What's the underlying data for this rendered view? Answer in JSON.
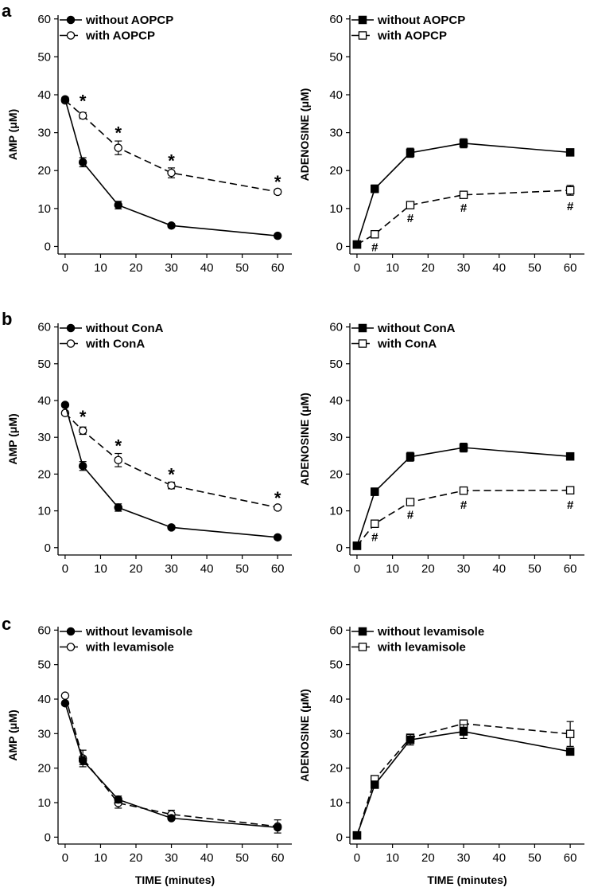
{
  "panel_labels": [
    "a",
    "b",
    "c"
  ],
  "chart_data": [
    {
      "type": "line",
      "panel": "a",
      "column": "left",
      "xlabel": "",
      "ylabel": "AMP (μM)",
      "xlim": [
        -2,
        64
      ],
      "ylim": [
        -2,
        61
      ],
      "xticks": [
        0,
        10,
        20,
        30,
        40,
        50,
        60
      ],
      "yticks": [
        0,
        10,
        20,
        30,
        40,
        50,
        60
      ],
      "legend_position": "top-left",
      "series": [
        {
          "name": "without AOPCP",
          "marker": "filled-circle",
          "dashed": false,
          "x": [
            0,
            5,
            15,
            30,
            60
          ],
          "y": [
            38.8,
            22.2,
            10.9,
            5.5,
            2.8
          ],
          "err": [
            0.5,
            1.2,
            1.0,
            0.5,
            0.4
          ]
        },
        {
          "name": "with AOPCP",
          "marker": "open-circle",
          "dashed": true,
          "x": [
            0,
            5,
            15,
            30,
            60
          ],
          "y": [
            38.5,
            34.5,
            26.0,
            19.4,
            14.4
          ],
          "err": [
            0.5,
            0.8,
            1.8,
            1.3,
            0.6
          ]
        }
      ],
      "annotations": [
        {
          "text": "*",
          "x": 5,
          "y": 38.4
        },
        {
          "text": "*",
          "x": 15,
          "y": 30.0
        },
        {
          "text": "*",
          "x": 30,
          "y": 22.7
        },
        {
          "text": "*",
          "x": 60,
          "y": 17.1
        }
      ]
    },
    {
      "type": "line",
      "panel": "a",
      "column": "right",
      "xlabel": "",
      "ylabel": "ADENOSINE (μM)",
      "xlim": [
        -2,
        64
      ],
      "ylim": [
        -2,
        61
      ],
      "xticks": [
        0,
        10,
        20,
        30,
        40,
        50,
        60
      ],
      "yticks": [
        0,
        10,
        20,
        30,
        40,
        50,
        60
      ],
      "legend_position": "top-left",
      "series": [
        {
          "name": "without AOPCP",
          "marker": "filled-square",
          "dashed": false,
          "x": [
            0,
            5,
            15,
            30,
            60
          ],
          "y": [
            0.5,
            15.2,
            24.7,
            27.2,
            24.8
          ],
          "err": [
            0.3,
            1.0,
            1.2,
            1.2,
            0.8
          ]
        },
        {
          "name": "with AOPCP",
          "marker": "open-square",
          "dashed": true,
          "x": [
            0,
            5,
            15,
            30,
            60
          ],
          "y": [
            0.5,
            3.2,
            10.9,
            13.6,
            14.8
          ],
          "err": [
            0.3,
            0.5,
            0.7,
            0.6,
            1.3
          ]
        }
      ],
      "annotations": [
        {
          "text": "#",
          "x": 5,
          "y": -1.3
        },
        {
          "text": "#",
          "x": 15,
          "y": 6.4
        },
        {
          "text": "#",
          "x": 30,
          "y": 9.1
        },
        {
          "text": "#",
          "x": 60,
          "y": 9.5
        }
      ]
    },
    {
      "type": "line",
      "panel": "b",
      "column": "left",
      "xlabel": "",
      "ylabel": "AMP (μM)",
      "xlim": [
        -2,
        64
      ],
      "ylim": [
        -2,
        61
      ],
      "xticks": [
        0,
        10,
        20,
        30,
        40,
        50,
        60
      ],
      "yticks": [
        0,
        10,
        20,
        30,
        40,
        50,
        60
      ],
      "legend_position": "top-left",
      "series": [
        {
          "name": "without ConA",
          "marker": "filled-circle",
          "dashed": false,
          "x": [
            0,
            5,
            15,
            30,
            60
          ],
          "y": [
            38.8,
            22.2,
            10.9,
            5.5,
            2.8
          ],
          "err": [
            0.5,
            1.2,
            1.0,
            0.5,
            0.4
          ]
        },
        {
          "name": "with ConA",
          "marker": "open-circle",
          "dashed": true,
          "x": [
            0,
            5,
            15,
            30,
            60
          ],
          "y": [
            36.6,
            31.8,
            23.8,
            16.9,
            10.9
          ],
          "err": [
            0.5,
            1.0,
            1.8,
            0.9,
            0.5
          ]
        }
      ],
      "annotations": [
        {
          "text": "*",
          "x": 5,
          "y": 35.7
        },
        {
          "text": "*",
          "x": 15,
          "y": 27.8
        },
        {
          "text": "*",
          "x": 30,
          "y": 20.0
        },
        {
          "text": "*",
          "x": 60,
          "y": 13.6
        }
      ]
    },
    {
      "type": "line",
      "panel": "b",
      "column": "right",
      "xlabel": "",
      "ylabel": "ADENOSINE (μM)",
      "xlim": [
        -2,
        64
      ],
      "ylim": [
        -2,
        61
      ],
      "xticks": [
        0,
        10,
        20,
        30,
        40,
        50,
        60
      ],
      "yticks": [
        0,
        10,
        20,
        30,
        40,
        50,
        60
      ],
      "legend_position": "top-left",
      "series": [
        {
          "name": "without ConA",
          "marker": "filled-square",
          "dashed": false,
          "x": [
            0,
            5,
            15,
            30,
            60
          ],
          "y": [
            0.5,
            15.2,
            24.7,
            27.2,
            24.8
          ],
          "err": [
            0.3,
            1.0,
            1.2,
            1.2,
            0.8
          ]
        },
        {
          "name": "with ConA",
          "marker": "open-square",
          "dashed": true,
          "x": [
            0,
            5,
            15,
            30,
            60
          ],
          "y": [
            0.5,
            6.5,
            12.4,
            15.5,
            15.6
          ],
          "err": [
            0.3,
            0.5,
            0.9,
            0.4,
            0.4
          ]
        }
      ],
      "annotations": [
        {
          "text": "#",
          "x": 5,
          "y": 1.8
        },
        {
          "text": "#",
          "x": 15,
          "y": 7.8
        },
        {
          "text": "#",
          "x": 30,
          "y": 10.6
        },
        {
          "text": "#",
          "x": 60,
          "y": 10.6
        }
      ]
    },
    {
      "type": "line",
      "panel": "c",
      "column": "left",
      "xlabel": "TIME (minutes)",
      "ylabel": "AMP (μM)",
      "xlim": [
        -2,
        64
      ],
      "ylim": [
        -2,
        61
      ],
      "xticks": [
        0,
        10,
        20,
        30,
        40,
        50,
        60
      ],
      "yticks": [
        0,
        10,
        20,
        30,
        40,
        50,
        60
      ],
      "legend_position": "top-left",
      "series": [
        {
          "name": "without levamisole",
          "marker": "filled-circle",
          "dashed": false,
          "x": [
            0,
            5,
            15,
            30,
            60
          ],
          "y": [
            38.8,
            22.2,
            10.9,
            5.5,
            2.8
          ],
          "err": [
            0.5,
            1.2,
            1.0,
            0.5,
            0.4
          ]
        },
        {
          "name": "with levamisole",
          "marker": "open-circle",
          "dashed": true,
          "x": [
            0,
            5,
            15,
            30,
            60
          ],
          "y": [
            41.0,
            22.8,
            9.9,
            6.6,
            3.1
          ],
          "err": [
            0.5,
            2.4,
            1.5,
            1.2,
            1.9
          ]
        }
      ],
      "annotations": []
    },
    {
      "type": "line",
      "panel": "c",
      "column": "right",
      "xlabel": "TIME (minutes)",
      "ylabel": "ADENOSINE (μM)",
      "xlim": [
        -2,
        64
      ],
      "ylim": [
        -2,
        61
      ],
      "xticks": [
        0,
        10,
        20,
        30,
        40,
        50,
        60
      ],
      "yticks": [
        0,
        10,
        20,
        30,
        40,
        50,
        60
      ],
      "legend_position": "top-left",
      "series": [
        {
          "name": "without levamisole",
          "marker": "filled-square",
          "dashed": false,
          "x": [
            0,
            5,
            15,
            30,
            60
          ],
          "y": [
            0.5,
            15.2,
            28.2,
            30.6,
            24.8
          ],
          "err": [
            0.3,
            1.0,
            1.5,
            2.0,
            0.8
          ]
        },
        {
          "name": "with levamisole",
          "marker": "open-square",
          "dashed": true,
          "x": [
            0,
            5,
            15,
            30,
            60
          ],
          "y": [
            0.5,
            16.8,
            28.8,
            32.9,
            29.9
          ],
          "err": [
            0.3,
            1.0,
            0.8,
            0.5,
            3.6
          ]
        }
      ],
      "annotations": []
    }
  ]
}
